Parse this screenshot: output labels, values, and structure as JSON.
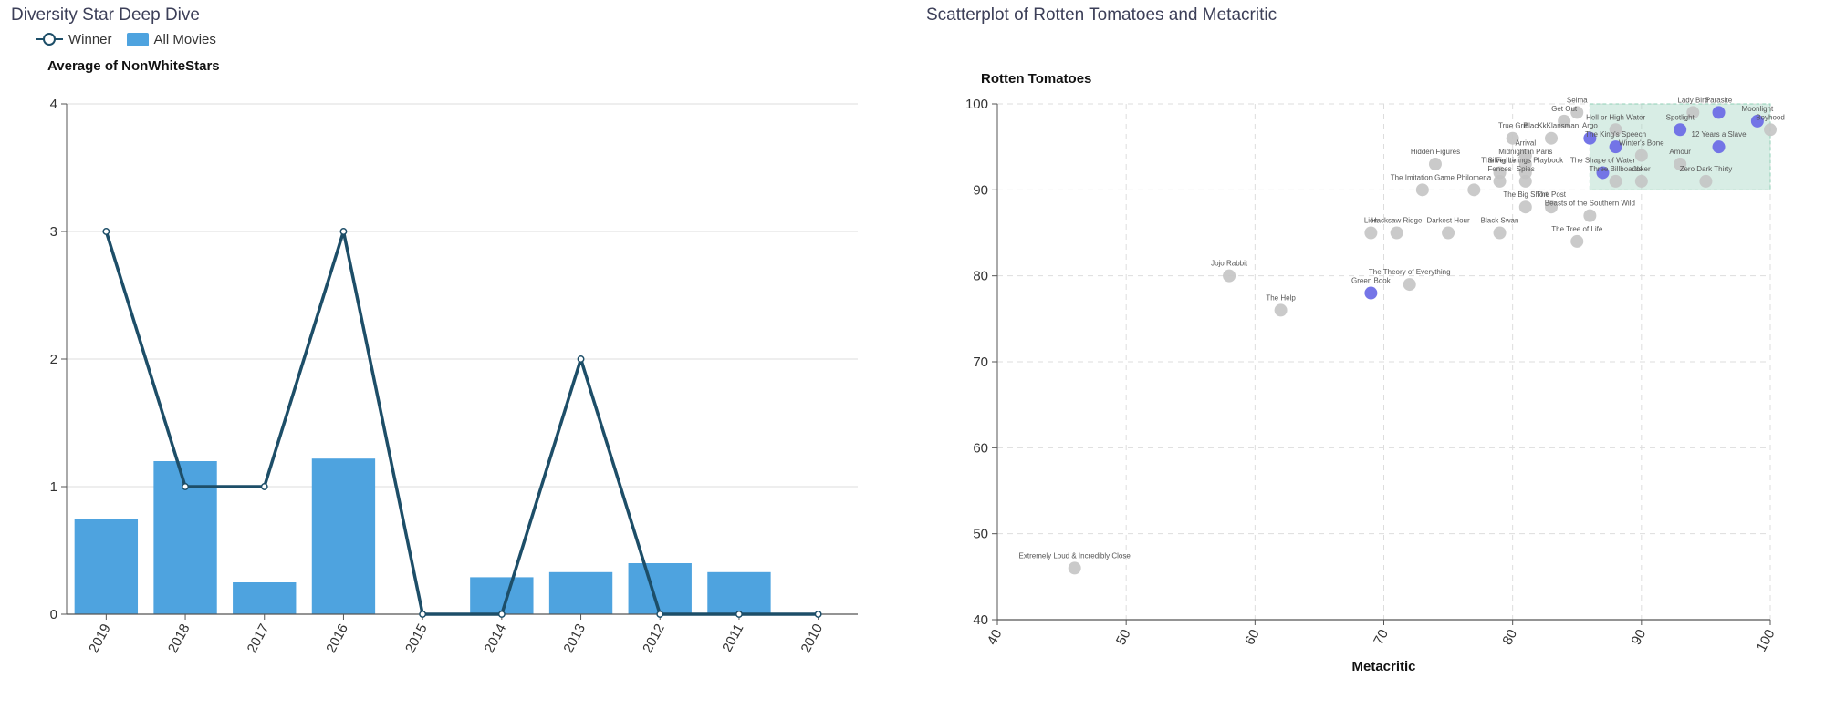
{
  "left": {
    "title": "Diversity Star Deep Dive",
    "legend": {
      "line_label": "Winner",
      "bar_label": "All Movies"
    }
  },
  "right": {
    "title": "Scatterplot of Rotten Tomatoes and Metacritic"
  },
  "colors": {
    "bar": "#4ea3df",
    "line": "#1d4e68",
    "point_gray": "#c4c4c4",
    "point_winner": "#6e6ee6",
    "highlight": "#a8d8c6"
  },
  "chart_data": [
    {
      "type": "bar",
      "title": "",
      "ylabel": "Average of NonWhiteStars",
      "xlabel": "",
      "categories": [
        "2019",
        "2018",
        "2017",
        "2016",
        "2015",
        "2014",
        "2013",
        "2012",
        "2011",
        "2010"
      ],
      "series": [
        {
          "name": "All Movies",
          "type": "bar",
          "values": [
            0.75,
            1.2,
            0.25,
            1.22,
            0,
            0.29,
            0.33,
            0.4,
            0.33,
            0
          ]
        },
        {
          "name": "Winner",
          "type": "line",
          "values": [
            3,
            1,
            1,
            3,
            0,
            0,
            2,
            0,
            0,
            0
          ]
        }
      ],
      "ylim": [
        0,
        4
      ],
      "yticks": [
        0,
        1,
        2,
        3,
        4
      ],
      "grid": "horizontal"
    },
    {
      "type": "scatter",
      "title": "",
      "xlabel": "Metacritic",
      "ylabel": "Rotten Tomatoes",
      "xlim": [
        40,
        100
      ],
      "ylim": [
        40,
        100
      ],
      "xticks": [
        40,
        50,
        60,
        70,
        80,
        90,
        100
      ],
      "yticks": [
        40,
        50,
        60,
        70,
        80,
        90,
        100
      ],
      "grid": "dashed",
      "highlight_region": {
        "x": [
          86,
          100
        ],
        "y": [
          90,
          100
        ]
      },
      "points": [
        {
          "label": "Extremely Loud & Incredibly Close",
          "x": 46,
          "y": 46,
          "winner": false
        },
        {
          "label": "Jojo Rabbit",
          "x": 58,
          "y": 80,
          "winner": false
        },
        {
          "label": "The Help",
          "x": 62,
          "y": 76,
          "winner": false
        },
        {
          "label": "Green Book",
          "x": 69,
          "y": 78,
          "winner": true
        },
        {
          "label": "The Theory of Everything",
          "x": 72,
          "y": 79,
          "winner": false
        },
        {
          "label": "Lion",
          "x": 69,
          "y": 85,
          "winner": false
        },
        {
          "label": "Hacksaw Ridge",
          "x": 71,
          "y": 85,
          "winner": false
        },
        {
          "label": "Darkest Hour",
          "x": 75,
          "y": 85,
          "winner": false
        },
        {
          "label": "Black Swan",
          "x": 79,
          "y": 85,
          "winner": false
        },
        {
          "label": "The Tree of Life",
          "x": 85,
          "y": 84,
          "winner": false
        },
        {
          "label": "Beasts of the Southern Wild",
          "x": 86,
          "y": 87,
          "winner": false
        },
        {
          "label": "The Imitation Game",
          "x": 73,
          "y": 90,
          "winner": false
        },
        {
          "label": "Philomena",
          "x": 77,
          "y": 90,
          "winner": false
        },
        {
          "label": "The Big Short",
          "x": 81,
          "y": 88,
          "winner": false
        },
        {
          "label": "The Post",
          "x": 83,
          "y": 88,
          "winner": false
        },
        {
          "label": "Hidden Figures",
          "x": 74,
          "y": 93,
          "winner": false
        },
        {
          "label": "Fences",
          "x": 79,
          "y": 91,
          "winner": false
        },
        {
          "label": "Silver Linings Playbook",
          "x": 81,
          "y": 92,
          "winner": false
        },
        {
          "label": "The Fighter",
          "x": 79,
          "y": 92,
          "winner": false
        },
        {
          "label": "Spies",
          "x": 81,
          "y": 91,
          "winner": false
        },
        {
          "label": "Midnight in Paris",
          "x": 81,
          "y": 93,
          "winner": false
        },
        {
          "label": "The Shape of Water",
          "x": 87,
          "y": 92,
          "winner": true
        },
        {
          "label": "Three Billboards",
          "x": 88,
          "y": 91,
          "winner": false
        },
        {
          "label": "Joker",
          "x": 90,
          "y": 91,
          "winner": false
        },
        {
          "label": "Zero Dark Thirty",
          "x": 95,
          "y": 91,
          "winner": false
        },
        {
          "label": "Argo",
          "x": 86,
          "y": 96,
          "winner": true
        },
        {
          "label": "True Grit",
          "x": 80,
          "y": 96,
          "winner": false
        },
        {
          "label": "BlacKkKlansman",
          "x": 83,
          "y": 96,
          "winner": false
        },
        {
          "label": "Arrival",
          "x": 81,
          "y": 94,
          "winner": false
        },
        {
          "label": "Get Out",
          "x": 84,
          "y": 98,
          "winner": false
        },
        {
          "label": "Selma",
          "x": 85,
          "y": 99,
          "winner": false
        },
        {
          "label": "Hell or High Water",
          "x": 88,
          "y": 97,
          "winner": false
        },
        {
          "label": "The King's Speech",
          "x": 88,
          "y": 95,
          "winner": true
        },
        {
          "label": "Winter's Bone",
          "x": 90,
          "y": 94,
          "winner": false
        },
        {
          "label": "Amour",
          "x": 93,
          "y": 93,
          "winner": false
        },
        {
          "label": "Spotlight",
          "x": 93,
          "y": 97,
          "winner": true
        },
        {
          "label": "12 Years a Slave",
          "x": 96,
          "y": 95,
          "winner": true
        },
        {
          "label": "Lady Bird",
          "x": 94,
          "y": 99,
          "winner": false
        },
        {
          "label": "Parasite",
          "x": 96,
          "y": 99,
          "winner": true
        },
        {
          "label": "Moonlight",
          "x": 99,
          "y": 98,
          "winner": true
        },
        {
          "label": "Boyhood",
          "x": 100,
          "y": 97,
          "winner": false
        }
      ]
    }
  ]
}
